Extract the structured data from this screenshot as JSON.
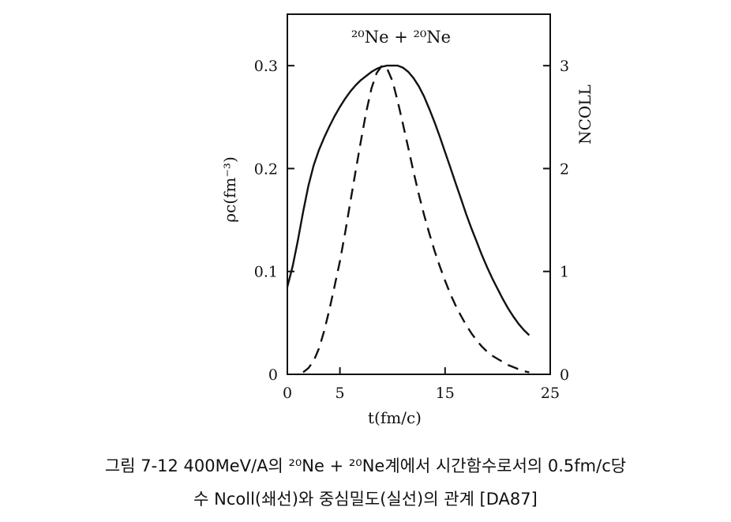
{
  "chart_data": {
    "type": "line",
    "annotation": "²⁰Ne + ²⁰Ne",
    "xlabel": "t(fm/c)",
    "ylabel_left": "ρc(fm⁻³)",
    "ylabel_right": "NCOLL",
    "xlim": [
      0,
      25
    ],
    "ylim_left": [
      0,
      0.35
    ],
    "ylim_right": [
      0,
      3.5
    ],
    "x_ticks": [
      0,
      5,
      15,
      25
    ],
    "y_left_ticks": [
      0,
      0.1,
      0.2,
      0.3
    ],
    "y_left_tick_labels": [
      "0",
      "0.1",
      "0.2",
      "0.3"
    ],
    "y_right_ticks": [
      0,
      1,
      2,
      3
    ],
    "y_right_tick_labels": [
      "0",
      "1",
      "2",
      "3"
    ],
    "grid": false,
    "series": [
      {
        "style": "solid",
        "axis": "left",
        "x": [
          0,
          0.5,
          1,
          1.5,
          2,
          2.5,
          3,
          3.5,
          4,
          4.5,
          5,
          5.5,
          6,
          6.5,
          7,
          7.5,
          8,
          8.5,
          9,
          9.5,
          10,
          10.5,
          11,
          11.5,
          12,
          12.5,
          13,
          13.5,
          14,
          14.5,
          15,
          15.5,
          16,
          16.5,
          17,
          17.5,
          18,
          18.5,
          19,
          19.5,
          20,
          20.5,
          21,
          21.5,
          22,
          22.5,
          23
        ],
        "y": [
          0.085,
          0.105,
          0.13,
          0.158,
          0.183,
          0.203,
          0.218,
          0.23,
          0.241,
          0.251,
          0.26,
          0.268,
          0.275,
          0.281,
          0.286,
          0.29,
          0.294,
          0.297,
          0.299,
          0.3,
          0.3,
          0.3,
          0.298,
          0.294,
          0.288,
          0.28,
          0.27,
          0.258,
          0.245,
          0.231,
          0.216,
          0.201,
          0.186,
          0.171,
          0.156,
          0.142,
          0.129,
          0.116,
          0.104,
          0.093,
          0.083,
          0.073,
          0.064,
          0.056,
          0.049,
          0.043,
          0.038
        ]
      },
      {
        "style": "dashed",
        "axis": "right",
        "x": [
          1.5,
          2,
          2.5,
          3,
          3.5,
          4,
          4.5,
          5,
          5.5,
          6,
          6.5,
          7,
          7.5,
          8,
          8.5,
          9,
          9.5,
          10,
          10.5,
          11,
          11.5,
          12,
          12.5,
          13,
          13.5,
          14,
          14.5,
          15,
          15.5,
          16,
          16.5,
          17,
          17.5,
          18,
          18.5,
          19,
          19.5,
          20,
          20.5,
          21,
          21.5,
          22,
          22.5,
          23
        ],
        "y": [
          0.02,
          0.06,
          0.13,
          0.25,
          0.42,
          0.63,
          0.86,
          1.1,
          1.38,
          1.68,
          1.98,
          2.27,
          2.55,
          2.78,
          2.93,
          3.0,
          2.97,
          2.85,
          2.65,
          2.43,
          2.2,
          1.97,
          1.75,
          1.55,
          1.37,
          1.2,
          1.05,
          0.91,
          0.78,
          0.67,
          0.57,
          0.48,
          0.4,
          0.33,
          0.27,
          0.22,
          0.18,
          0.15,
          0.12,
          0.09,
          0.07,
          0.05,
          0.03,
          0.02
        ]
      }
    ]
  },
  "caption": {
    "line1": "그림 7-12 400MeV/A의 ²⁰Ne + ²⁰Ne계에서 시간함수로서의 0.5fm/c당",
    "line2": "수 Ncoll(쇄선)와 중심밀도(실선)의 관계 [DA87]"
  }
}
